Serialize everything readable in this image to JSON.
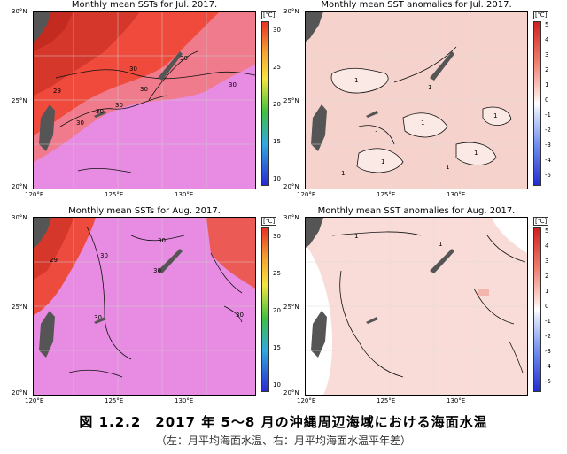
{
  "panels": {
    "sst_jul": {
      "title": "Monthly mean SSTs for Jul. 2017.",
      "unit": "[℃]",
      "ticks": [
        "30",
        "25",
        "20",
        "15",
        "10"
      ]
    },
    "anom_jul": {
      "title": "Monthly mean SST anomalies for Jul. 2017.",
      "unit": "[℃]",
      "ticks": [
        "5",
        "4",
        "3",
        "2",
        "1",
        "0",
        "-1",
        "-2",
        "-3",
        "-4",
        "-5"
      ]
    },
    "sst_aug": {
      "title": "Monthly mean SSTs for Aug. 2017.",
      "unit": "[℃]",
      "ticks": [
        "30",
        "25",
        "20",
        "15",
        "10"
      ]
    },
    "anom_aug": {
      "title": "Monthly mean SST anomalies for Aug. 2017.",
      "unit": "[℃]",
      "ticks": [
        "5",
        "4",
        "3",
        "2",
        "1",
        "0",
        "-1",
        "-2",
        "-3",
        "-4",
        "-5"
      ]
    }
  },
  "axes": {
    "lat": [
      "30°N",
      "25°N",
      "20°N"
    ],
    "lon": [
      "120°E",
      "125°E",
      "130°E"
    ]
  },
  "contour_labels": {
    "sst_jul": [
      "29",
      "30",
      "30",
      "30",
      "30",
      "30",
      "30",
      "30"
    ],
    "anom_jul": [
      "1",
      "1",
      "1",
      "1",
      "1",
      "1",
      "1",
      "1",
      "1"
    ],
    "sst_aug": [
      "29",
      "30",
      "30",
      "30",
      "30",
      "30"
    ],
    "anom_aug": [
      "1",
      "1"
    ]
  },
  "colors": {
    "land": "#555555",
    "sst_warm": "#e03a2e",
    "sst_main": "#e888e0",
    "anom_main": "#f6cfc9",
    "anom_light": "#fbe7e4"
  },
  "caption": {
    "main": "図 1.2.2　2017 年 5～8 月の沖縄周辺海域における海面水温",
    "sub": "（左：月平均海面水温、右：月平均海面水温平年差）"
  }
}
